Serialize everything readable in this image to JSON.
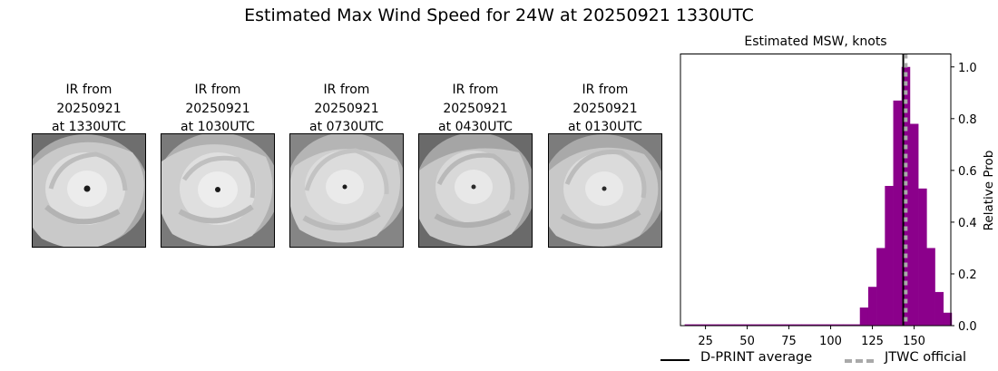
{
  "title": "Estimated Max Wind Speed for 24W at 20250921 1330UTC",
  "panels": [
    {
      "line1": "IR from",
      "line2": "20250921",
      "line3": "at 1330UTC"
    },
    {
      "line1": "IR from",
      "line2": "20250921",
      "line3": "at 1030UTC"
    },
    {
      "line1": "IR from",
      "line2": "20250921",
      "line3": "at 0730UTC"
    },
    {
      "line1": "IR from",
      "line2": "20250921",
      "line3": "at 0430UTC"
    },
    {
      "line1": "IR from",
      "line2": "20250921",
      "line3": "at 0130UTC"
    }
  ],
  "legend": {
    "dprint": "D-PRINT average",
    "jtwc": "JTWC official"
  },
  "colors": {
    "bars": "#8b008b",
    "dprint_line": "#000000",
    "jtwc_line": "#a9a9a9"
  },
  "chart_data": {
    "type": "bar",
    "title": "Estimated MSW, knots",
    "xlabel": "",
    "ylabel": "Relative Prob",
    "xlim": [
      10,
      172
    ],
    "ylim": [
      0,
      1.05
    ],
    "xticks": [
      25,
      50,
      75,
      100,
      125,
      150
    ],
    "yticks": [
      0.0,
      0.2,
      0.4,
      0.6,
      0.8,
      1.0
    ],
    "yaxis_side": "right",
    "bin_width": 5,
    "bins": [
      {
        "x": 15,
        "value": 0.005
      },
      {
        "x": 20,
        "value": 0.005
      },
      {
        "x": 25,
        "value": 0.005
      },
      {
        "x": 30,
        "value": 0.005
      },
      {
        "x": 35,
        "value": 0.005
      },
      {
        "x": 40,
        "value": 0.005
      },
      {
        "x": 45,
        "value": 0.005
      },
      {
        "x": 50,
        "value": 0.005
      },
      {
        "x": 55,
        "value": 0.005
      },
      {
        "x": 60,
        "value": 0.005
      },
      {
        "x": 65,
        "value": 0.005
      },
      {
        "x": 70,
        "value": 0.005
      },
      {
        "x": 75,
        "value": 0.005
      },
      {
        "x": 80,
        "value": 0.005
      },
      {
        "x": 85,
        "value": 0.005
      },
      {
        "x": 90,
        "value": 0.005
      },
      {
        "x": 95,
        "value": 0.005
      },
      {
        "x": 100,
        "value": 0.005
      },
      {
        "x": 105,
        "value": 0.005
      },
      {
        "x": 110,
        "value": 0.005
      },
      {
        "x": 115,
        "value": 0.005
      },
      {
        "x": 120,
        "value": 0.07
      },
      {
        "x": 125,
        "value": 0.15
      },
      {
        "x": 130,
        "value": 0.3
      },
      {
        "x": 135,
        "value": 0.54
      },
      {
        "x": 140,
        "value": 0.87
      },
      {
        "x": 145,
        "value": 1.0
      },
      {
        "x": 150,
        "value": 0.78
      },
      {
        "x": 155,
        "value": 0.53
      },
      {
        "x": 160,
        "value": 0.3
      },
      {
        "x": 165,
        "value": 0.13
      },
      {
        "x": 170,
        "value": 0.05
      }
    ],
    "dprint_average": 143.5,
    "jtwc_official": 145
  }
}
